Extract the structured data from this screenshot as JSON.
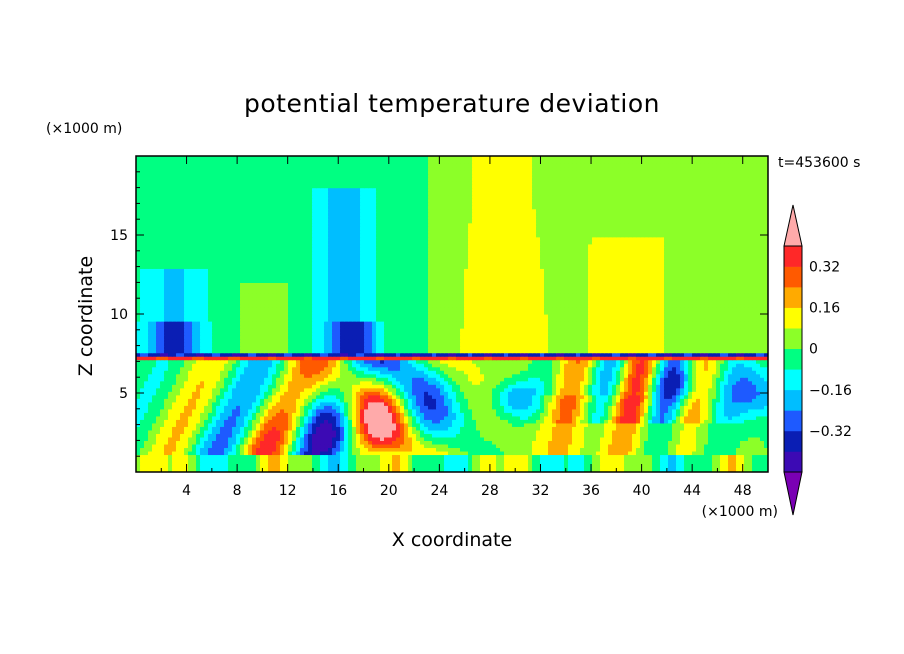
{
  "chart_data": {
    "type": "heatmap",
    "title": "potential temperature deviation",
    "xlabel": "X coordinate",
    "ylabel": "Z coordinate",
    "x_unit": "(×1000 m)",
    "y_unit": "(×1000 m)",
    "time_label": "t=453600 s",
    "xlim": [
      0,
      50
    ],
    "ylim": [
      0,
      20
    ],
    "xticks": [
      4,
      8,
      12,
      16,
      20,
      24,
      28,
      32,
      36,
      40,
      44,
      48
    ],
    "yticks": [
      5,
      10,
      15
    ],
    "colorbar": {
      "levels": [
        -0.48,
        -0.4,
        -0.32,
        -0.24,
        -0.16,
        -0.08,
        0,
        0.08,
        0.16,
        0.24,
        0.32,
        0.4
      ],
      "colors": [
        "#7a00b4",
        "#3c0ab4",
        "#0a1eb4",
        "#1e5aff",
        "#00beff",
        "#00ffff",
        "#00ff82",
        "#8cff28",
        "#ffff00",
        "#ffaa00",
        "#ff5a00",
        "#ff2828",
        "#ffaaaa"
      ],
      "tick_labels": [
        "0.32",
        "0.16",
        "0",
        "−0.16",
        "−0.32"
      ],
      "tick_values": [
        0.32,
        0.16,
        0,
        -0.16,
        -0.32
      ]
    }
  }
}
